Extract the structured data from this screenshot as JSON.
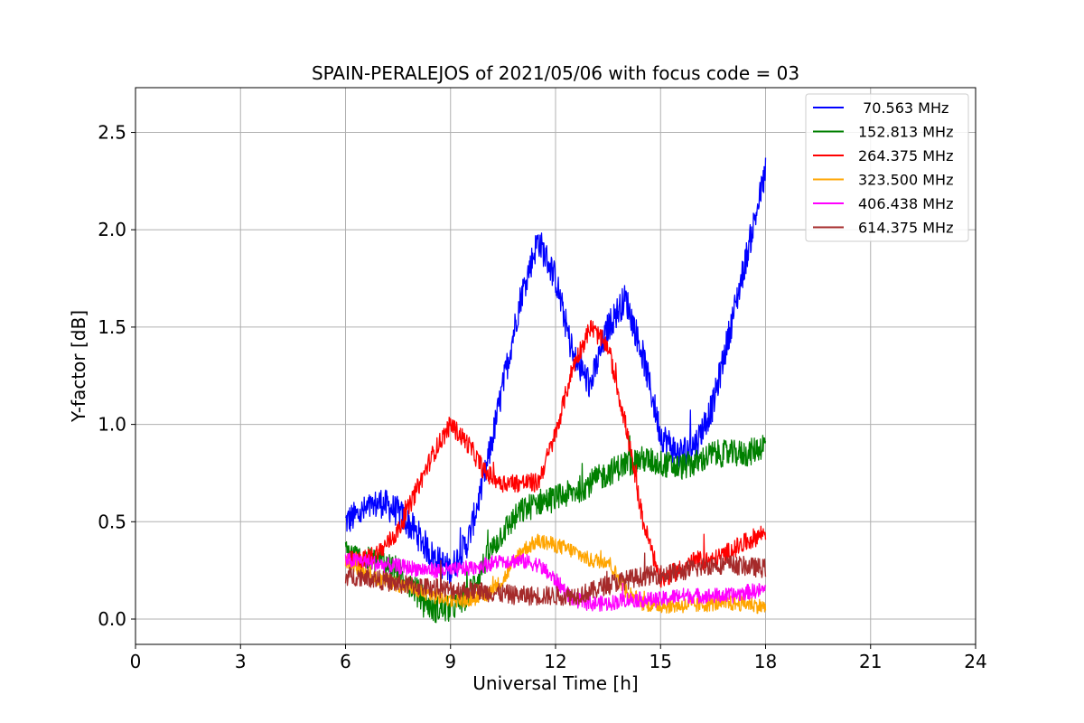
{
  "chart_data": {
    "type": "line",
    "title": "SPAIN-PERALEJOS of 2021/05/06 with focus code = 03",
    "xlabel": "Universal Time [h]",
    "ylabel": "Y-factor [dB]",
    "xlim": [
      0,
      24
    ],
    "ylim": [
      -0.13,
      2.73
    ],
    "xticks": [
      0,
      3,
      6,
      9,
      12,
      15,
      18,
      21,
      24
    ],
    "yticks": [
      0.0,
      0.5,
      1.0,
      1.5,
      2.0,
      2.5
    ],
    "xtick_labels": [
      "0",
      "3",
      "6",
      "9",
      "12",
      "15",
      "18",
      "21",
      "24"
    ],
    "ytick_labels": [
      "0.0",
      "0.5",
      "1.0",
      "1.5",
      "2.0",
      "2.5"
    ],
    "grid": true,
    "legend_position": "top-right",
    "series": [
      {
        "name": " 70.563 MHz",
        "color": "#0000ff",
        "noise": 0.08,
        "x": [
          6.0,
          6.5,
          7.0,
          7.5,
          8.0,
          8.5,
          9.0,
          9.5,
          10.0,
          10.5,
          11.0,
          11.5,
          12.0,
          12.5,
          13.0,
          13.5,
          14.0,
          14.5,
          15.0,
          15.5,
          16.0,
          16.5,
          17.0,
          17.5,
          18.0
        ],
        "y": [
          0.5,
          0.55,
          0.6,
          0.55,
          0.45,
          0.32,
          0.25,
          0.4,
          0.75,
          1.2,
          1.65,
          1.95,
          1.75,
          1.35,
          1.2,
          1.5,
          1.65,
          1.35,
          0.95,
          0.85,
          0.9,
          1.1,
          1.5,
          1.9,
          2.3
        ]
      },
      {
        "name": "152.813 MHz",
        "color": "#008000",
        "noise": 0.07,
        "x": [
          6.0,
          6.5,
          7.0,
          7.5,
          8.0,
          8.5,
          9.0,
          9.5,
          10.0,
          10.5,
          11.0,
          11.5,
          12.0,
          12.5,
          13.0,
          13.5,
          14.0,
          14.5,
          15.0,
          15.5,
          16.0,
          16.5,
          17.0,
          17.5,
          18.0
        ],
        "y": [
          0.35,
          0.3,
          0.3,
          0.25,
          0.15,
          0.05,
          0.05,
          0.12,
          0.3,
          0.45,
          0.55,
          0.6,
          0.62,
          0.65,
          0.7,
          0.75,
          0.8,
          0.82,
          0.8,
          0.78,
          0.8,
          0.85,
          0.85,
          0.85,
          0.9
        ]
      },
      {
        "name": "264.375 MHz",
        "color": "#ff0000",
        "noise": 0.05,
        "x": [
          6.0,
          6.5,
          7.0,
          7.5,
          8.0,
          8.5,
          9.0,
          9.5,
          10.0,
          10.5,
          11.0,
          11.5,
          12.0,
          12.5,
          13.0,
          13.5,
          14.0,
          14.5,
          15.0,
          15.5,
          16.0,
          16.5,
          17.0,
          17.5,
          18.0
        ],
        "y": [
          0.3,
          0.3,
          0.35,
          0.45,
          0.65,
          0.85,
          1.0,
          0.9,
          0.75,
          0.7,
          0.7,
          0.7,
          0.95,
          1.3,
          1.5,
          1.4,
          1.0,
          0.5,
          0.2,
          0.25,
          0.3,
          0.3,
          0.35,
          0.4,
          0.45
        ]
      },
      {
        "name": "323.500 MHz",
        "color": "#ffa500",
        "noise": 0.04,
        "x": [
          6.0,
          6.5,
          7.0,
          7.5,
          8.0,
          8.5,
          9.0,
          9.5,
          10.0,
          10.5,
          11.0,
          11.5,
          12.0,
          12.5,
          13.0,
          13.5,
          14.0,
          14.5,
          15.0,
          15.5,
          16.0,
          16.5,
          17.0,
          17.5,
          18.0
        ],
        "y": [
          0.3,
          0.25,
          0.2,
          0.18,
          0.15,
          0.12,
          0.1,
          0.1,
          0.12,
          0.2,
          0.35,
          0.4,
          0.38,
          0.35,
          0.3,
          0.3,
          0.15,
          0.08,
          0.07,
          0.07,
          0.07,
          0.08,
          0.08,
          0.08,
          0.06
        ]
      },
      {
        "name": "406.438 MHz",
        "color": "#ff00ff",
        "noise": 0.04,
        "x": [
          6.0,
          6.5,
          7.0,
          7.5,
          8.0,
          8.5,
          9.0,
          9.5,
          10.0,
          10.5,
          11.0,
          11.5,
          12.0,
          12.5,
          13.0,
          13.5,
          14.0,
          14.5,
          15.0,
          15.5,
          16.0,
          16.5,
          17.0,
          17.5,
          18.0
        ],
        "y": [
          0.3,
          0.3,
          0.28,
          0.27,
          0.26,
          0.25,
          0.25,
          0.26,
          0.28,
          0.3,
          0.3,
          0.28,
          0.2,
          0.1,
          0.08,
          0.08,
          0.1,
          0.1,
          0.1,
          0.12,
          0.12,
          0.12,
          0.12,
          0.14,
          0.15
        ]
      },
      {
        "name": "614.375 MHz",
        "color": "#a52a2a",
        "noise": 0.05,
        "x": [
          6.0,
          6.5,
          7.0,
          7.5,
          8.0,
          8.5,
          9.0,
          9.5,
          10.0,
          10.5,
          11.0,
          11.5,
          12.0,
          12.5,
          13.0,
          13.5,
          14.0,
          14.5,
          15.0,
          15.5,
          16.0,
          16.5,
          17.0,
          17.5,
          18.0
        ],
        "y": [
          0.22,
          0.22,
          0.2,
          0.18,
          0.17,
          0.16,
          0.15,
          0.15,
          0.14,
          0.13,
          0.12,
          0.12,
          0.12,
          0.12,
          0.14,
          0.18,
          0.2,
          0.22,
          0.23,
          0.24,
          0.26,
          0.28,
          0.28,
          0.27,
          0.26
        ]
      }
    ]
  }
}
